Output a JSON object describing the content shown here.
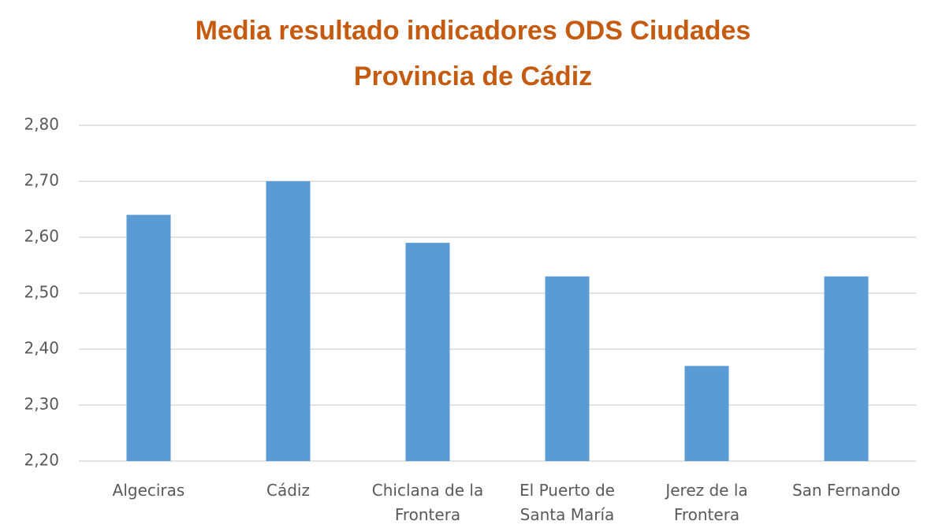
{
  "chart_data": {
    "type": "bar",
    "title": "Media resultado indicadores ODS Ciudades\nProvincia de Cádiz",
    "categories": [
      "Algeciras",
      "Cádiz",
      "Chiclana de la\nFrontera",
      "El Puerto de\nSanta María",
      "Jerez de la\nFrontera",
      "San Fernando"
    ],
    "values": [
      2.64,
      2.7,
      2.59,
      2.53,
      2.37,
      2.53
    ],
    "color": "#5b9bd5",
    "ylim": [
      2.2,
      2.8
    ],
    "yticks": [
      {
        "value": 2.2,
        "label": "2,20"
      },
      {
        "value": 2.3,
        "label": "2,30"
      },
      {
        "value": 2.4,
        "label": "2,40"
      },
      {
        "value": 2.5,
        "label": "2,50"
      },
      {
        "value": 2.6,
        "label": "2,60"
      },
      {
        "value": 2.7,
        "label": "2,70"
      },
      {
        "value": 2.8,
        "label": "2,80"
      }
    ],
    "grid": true
  }
}
